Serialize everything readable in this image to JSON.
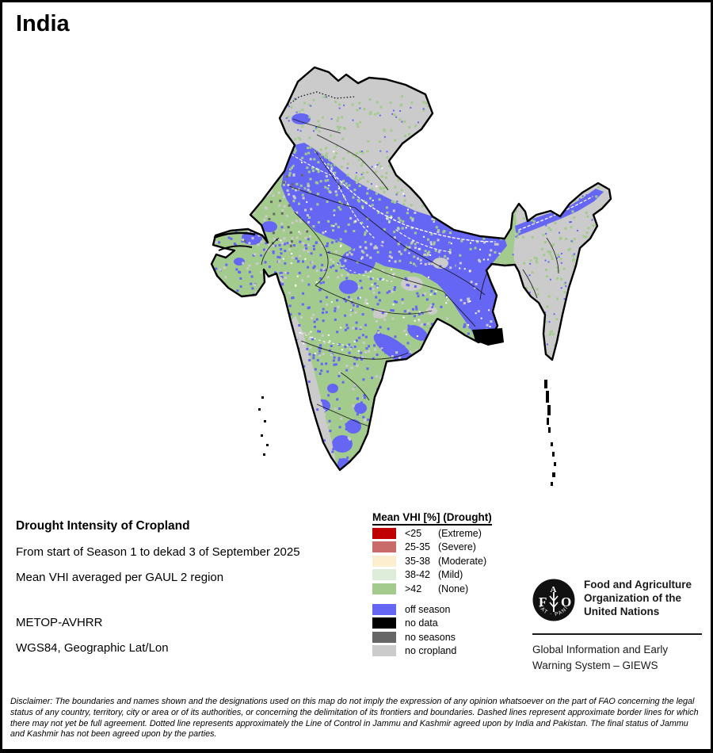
{
  "title": "India",
  "map": {
    "colors": {
      "extreme": "#C00000",
      "severe": "#C96B69",
      "moderate": "#FCEECF",
      "mild": "#DEEDD9",
      "none": "#A4CB8E",
      "off_season": "#6666F5",
      "no_data": "#000000",
      "no_seasons": "#666666",
      "no_cropland": "#CBCBCB",
      "border": "#000000",
      "river": "#FFFFFF"
    }
  },
  "legend": {
    "title": "Mean VHI [%] (Drought)",
    "drought_classes": [
      {
        "range": "<25",
        "label": "(Extreme)",
        "color_key": "extreme"
      },
      {
        "range": "25-35",
        "label": "(Severe)",
        "color_key": "severe"
      },
      {
        "range": "35-38",
        "label": "(Moderate)",
        "color_key": "moderate"
      },
      {
        "range": "38-42",
        "label": "(Mild)",
        "color_key": "mild"
      },
      {
        "range": ">42",
        "label": "(None)",
        "color_key": "none"
      }
    ],
    "other_classes": [
      {
        "label": "off season",
        "color_key": "off_season"
      },
      {
        "label": "no data",
        "color_key": "no_data"
      },
      {
        "label": "no seasons",
        "color_key": "no_seasons"
      },
      {
        "label": "no cropland",
        "color_key": "no_cropland"
      }
    ]
  },
  "info": {
    "heading": "Drought Intensity of Cropland",
    "period_line": "From start of Season 1 to dekad 3 of September 2025",
    "aggregation_line": "Mean VHI averaged per GAUL 2 region",
    "sensor": "METOP-AVHRR",
    "projection": "WGS84, Geographic Lat/Lon"
  },
  "branding": {
    "org_line1": "Food and Agriculture",
    "org_line2": "Organization of the",
    "org_line3": "United Nations",
    "logo_letter_f": "F",
    "logo_letter_a": "A",
    "logo_letter_o": "O",
    "logo_motto": "FIAT · PANIS",
    "system_line1": "Global Information and Early",
    "system_line2": "Warning System – GIEWS"
  },
  "disclaimer": "Disclaimer: The boundaries and names shown and the designations used on this map do not imply the expression of any opinion whatsoever on the part of FAO concerning the legal status of any country, territory, city or area or of its authorities, or concerning the delimitation of its frontiers and boundaries. Dashed lines represent approximate border lines for which there may not yet be full agreement. Dotted line represents approximately the Line of Control in Jammu and Kashmir agreed upon by India and Pakistan. The final status of Jammu and Kashmir has not been agreed upon by the parties."
}
